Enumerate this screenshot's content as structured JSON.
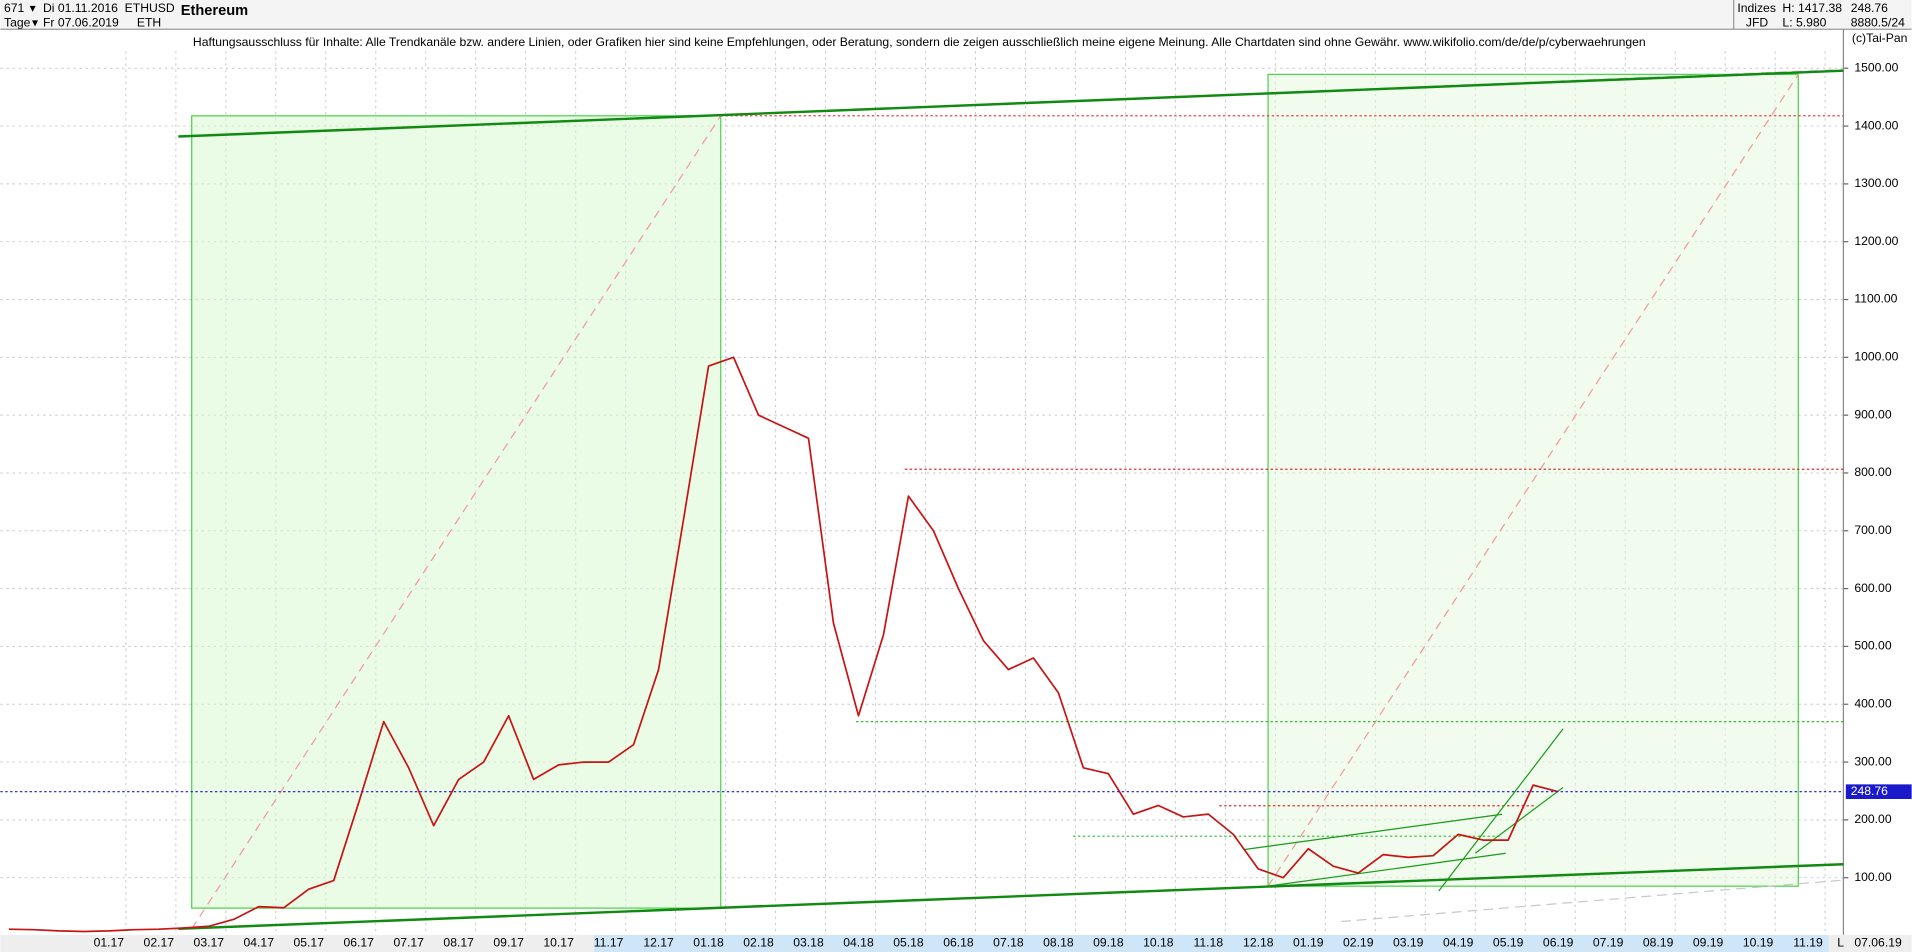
{
  "header": {
    "count": "671",
    "from": "Di 01.11.2016",
    "symbol": "ETHUSD",
    "name": "Ethereum",
    "period": "Tage",
    "to": "Fr 07.06.2019",
    "short": "ETH",
    "group": "Indizes",
    "high": "H: 1417.38",
    "last": "248.76",
    "broker": "JFD",
    "low": "L: 5.980",
    "extra": "8880.5/24",
    "disclaimer": "Haftungsausschluss für Inhalte: Alle Trendkanäle bzw. andere Linien, oder Grafiken hier sind keine Empfehlungen, oder Beratung, sondern die zeigen ausschließlich meine eigene Meinung. Alle Chartdaten sind ohne Gewähr.  www.wikifolio.com/de/de/p/cyberwaehrungen",
    "copyright": "(c)Tai-Pan",
    "date": "07.06.19",
    "corner": "L"
  },
  "chart_data": {
    "type": "line",
    "color": "#c81414",
    "categories": [
      null,
      null,
      null,
      null,
      "01.17",
      null,
      "02.17",
      null,
      "03.17",
      null,
      "04.17",
      null,
      "05.17",
      null,
      "06.17",
      null,
      "07.17",
      null,
      "08.17",
      null,
      "09.17",
      null,
      "10.17",
      null,
      "11.17",
      null,
      "12.17",
      null,
      "01.18",
      null,
      "02.18",
      null,
      "03.18",
      null,
      "04.18",
      null,
      "05.18",
      null,
      "06.18",
      null,
      "07.18",
      null,
      "08.18",
      null,
      "09.18",
      null,
      "10.18",
      null,
      "11.18",
      null,
      "12.18",
      null,
      "01.19",
      null,
      "02.19",
      null,
      "03.19",
      null,
      "04.19",
      null,
      "05.19",
      null,
      "06.19",
      null,
      "07.19",
      null,
      "08.19",
      null,
      "09.19",
      null,
      "10.19",
      null,
      "11.19",
      null
    ],
    "values": [
      11,
      10,
      8,
      7,
      8,
      10,
      11,
      13,
      16,
      28,
      50,
      48,
      80,
      95,
      230,
      370,
      290,
      190,
      270,
      300,
      380,
      270,
      295,
      300,
      300,
      330,
      460,
      720,
      985,
      1000,
      900,
      880,
      860,
      540,
      380,
      520,
      760,
      700,
      600,
      510,
      460,
      480,
      420,
      290,
      280,
      210,
      225,
      205,
      210,
      175,
      115,
      100,
      150,
      120,
      108,
      140,
      135,
      138,
      175,
      165,
      165,
      260,
      248.76,
      null,
      null,
      null,
      null,
      null,
      null,
      null,
      null,
      null,
      null,
      null
    ],
    "last_value": 248.76,
    "ylim": [
      1,
      1559
    ],
    "yticks": [
      {
        "value": 100,
        "label": "100.00"
      },
      {
        "value": 200,
        "label": "200.00"
      },
      {
        "value": 300,
        "label": "300.00"
      },
      {
        "value": 400,
        "label": "400.00"
      },
      {
        "value": 500,
        "label": "500.00"
      },
      {
        "value": 600,
        "label": "600.00"
      },
      {
        "value": 700,
        "label": "700.00"
      },
      {
        "value": 800,
        "label": "800.00"
      },
      {
        "value": 900,
        "label": "900.00"
      },
      {
        "value": 1000,
        "label": "1000.00"
      },
      {
        "value": 1100,
        "label": "1100.00"
      },
      {
        "value": 1200,
        "label": "1200.00"
      },
      {
        "value": 1300,
        "label": "1300.00"
      },
      {
        "value": 1400,
        "label": "1400.00"
      },
      {
        "value": 1500,
        "label": "1500.00"
      }
    ],
    "grid": true
  }
}
